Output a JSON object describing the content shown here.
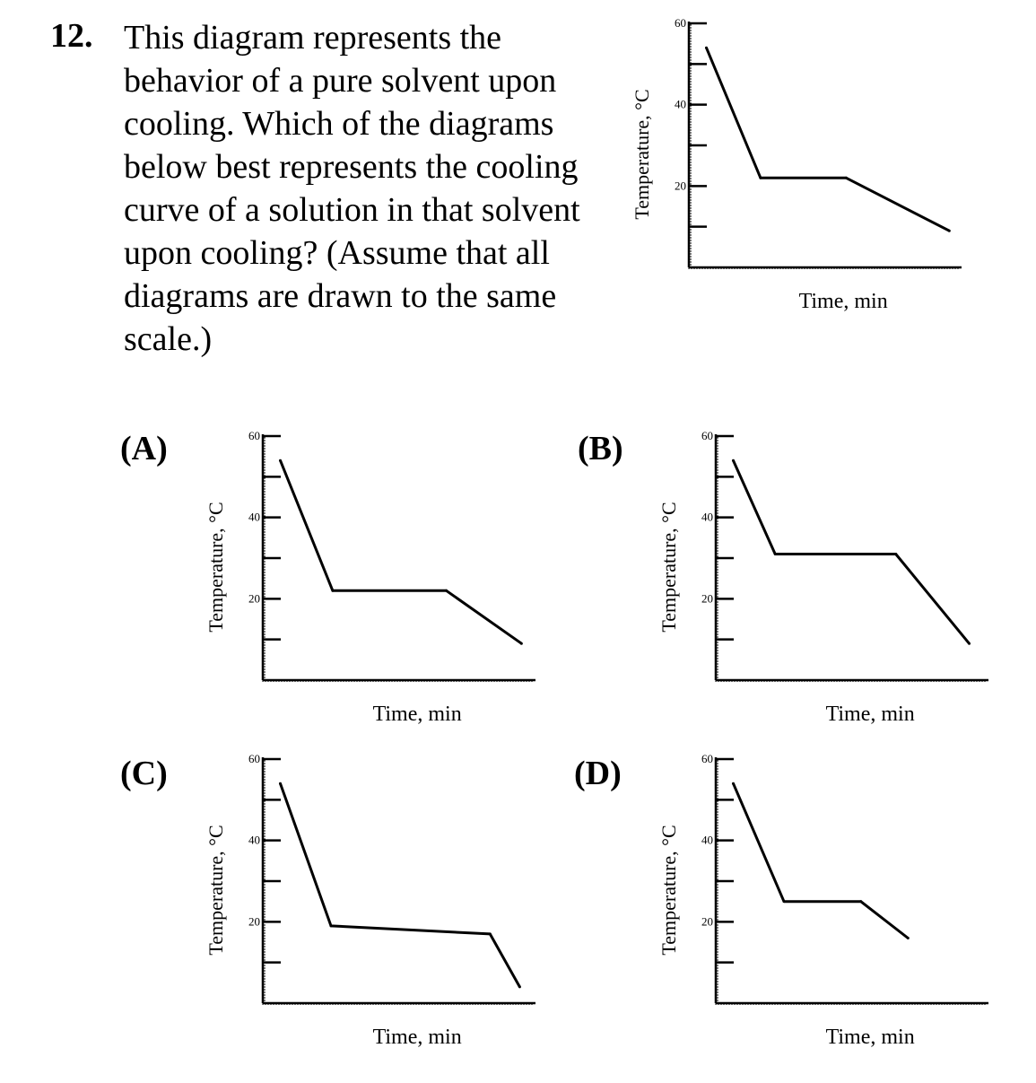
{
  "question": {
    "number": "12.",
    "text": "This diagram represents the behavior of a pure solvent upon cooling. Which of the diagrams below best represents the cooling curve of a solution in that solvent upon cooling? (Assume that all diagrams are drawn to the same scale.)"
  },
  "options": [
    {
      "label": "(A)"
    },
    {
      "label": "(B)"
    },
    {
      "label": "(C)"
    },
    {
      "label": "(D)"
    }
  ],
  "chart_data": [
    {
      "id": "reference",
      "type": "line",
      "xlabel": "Time, min",
      "ylabel": "Temperature, °C",
      "yticks": [
        "60",
        "40",
        "20"
      ],
      "ylim": [
        0,
        60
      ],
      "grid": false,
      "series": [
        {
          "x": [
            1.0,
            4.1,
            9.0,
            14.9
          ],
          "y": [
            54,
            22,
            22,
            9
          ]
        }
      ]
    },
    {
      "id": "A",
      "type": "line",
      "xlabel": "Time, min",
      "ylabel": "Temperature, °C",
      "yticks": [
        "60",
        "40",
        "20"
      ],
      "ylim": [
        0,
        60
      ],
      "grid": false,
      "series": [
        {
          "x": [
            1.0,
            4.0,
            10.5,
            14.8
          ],
          "y": [
            54,
            22,
            22,
            9
          ]
        }
      ]
    },
    {
      "id": "B",
      "type": "line",
      "xlabel": "Time, min",
      "ylabel": "Temperature, °C",
      "yticks": [
        "60",
        "40",
        "20"
      ],
      "ylim": [
        0,
        60
      ],
      "grid": false,
      "series": [
        {
          "x": [
            1.0,
            3.4,
            10.3,
            14.5
          ],
          "y": [
            54,
            31,
            31,
            9
          ]
        }
      ]
    },
    {
      "id": "C",
      "type": "line",
      "xlabel": "Time, min",
      "ylabel": "Temperature, °C",
      "yticks": [
        "60",
        "40",
        "20"
      ],
      "ylim": [
        0,
        60
      ],
      "grid": false,
      "series": [
        {
          "x": [
            1.0,
            3.9,
            13.0,
            14.7
          ],
          "y": [
            54,
            19,
            17,
            4
          ]
        }
      ]
    },
    {
      "id": "D",
      "type": "line",
      "xlabel": "Time, min",
      "ylabel": "Temperature, °C",
      "yticks": [
        "60",
        "40",
        "20"
      ],
      "ylim": [
        0,
        60
      ],
      "grid": false,
      "series": [
        {
          "x": [
            1.0,
            3.9,
            8.3,
            11.0
          ],
          "y": [
            54,
            25,
            25,
            16
          ]
        }
      ]
    }
  ]
}
